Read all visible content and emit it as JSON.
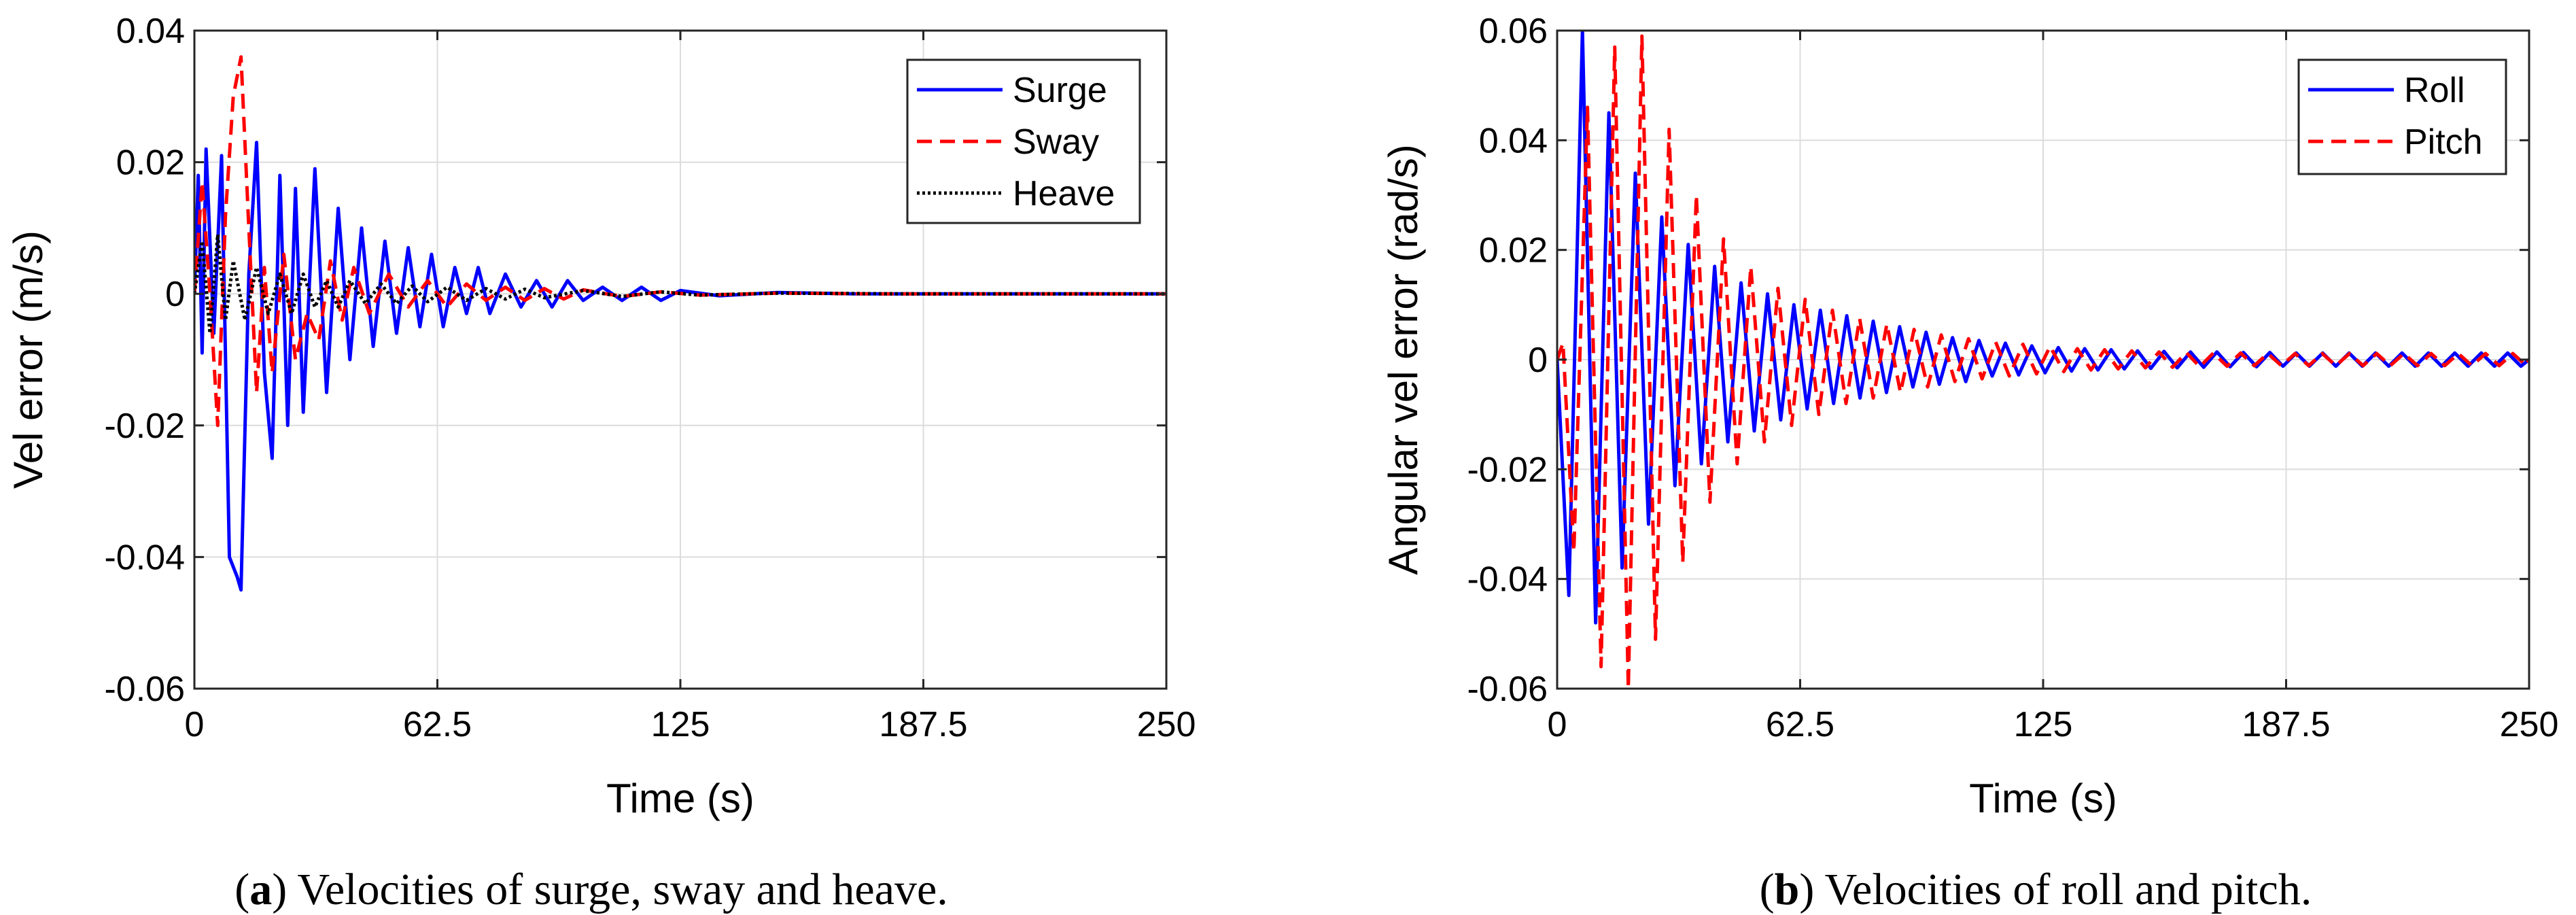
{
  "chart_data": [
    {
      "type": "line",
      "panel": "a",
      "caption_letter": "a",
      "caption_text": ") Velocities of surge, sway and heave.",
      "xlabel": "Time (s)",
      "ylabel": "Vel error (m/s)",
      "xlim": [
        0,
        250
      ],
      "ylim": [
        -0.06,
        0.04
      ],
      "xticks": [
        0,
        62.5,
        125,
        187.5,
        250
      ],
      "xtick_labels": [
        "0",
        "62.5",
        "125",
        "187.5",
        "250"
      ],
      "yticks": [
        -0.06,
        -0.04,
        -0.02,
        0,
        0.02,
        0.04
      ],
      "ytick_labels": [
        "-0.06",
        "-0.04",
        "-0.02",
        "0",
        "0.02",
        "0.04"
      ],
      "grid": true,
      "legend_position": "top-right",
      "series": [
        {
          "name": "Surge",
          "color": "#0000ff",
          "style": "solid",
          "x": [
            0,
            1,
            2,
            3,
            5,
            7,
            9,
            11,
            12,
            14,
            16,
            18,
            20,
            22,
            24,
            26,
            28,
            31,
            34,
            37,
            40,
            43,
            46,
            49,
            52,
            55,
            58,
            61,
            64,
            67,
            70,
            73,
            76,
            80,
            84,
            88,
            92,
            96,
            100,
            105,
            110,
            115,
            120,
            125,
            135,
            150,
            170,
            200,
            250
          ],
          "values": [
            0,
            0.018,
            -0.009,
            0.022,
            -0.006,
            0.021,
            -0.04,
            -0.043,
            -0.045,
            0.003,
            0.023,
            -0.012,
            -0.025,
            0.018,
            -0.02,
            0.016,
            -0.018,
            0.019,
            -0.015,
            0.013,
            -0.01,
            0.01,
            -0.008,
            0.008,
            -0.006,
            0.007,
            -0.005,
            0.006,
            -0.005,
            0.004,
            -0.003,
            0.004,
            -0.003,
            0.003,
            -0.002,
            0.002,
            -0.002,
            0.002,
            -0.001,
            0.001,
            -0.001,
            0.001,
            -0.001,
            0.0005,
            -0.0003,
            0.0002,
            0.0,
            0.0,
            0.0
          ]
        },
        {
          "name": "Sway",
          "color": "#ff0000",
          "style": "dashed",
          "x": [
            0,
            2,
            4,
            6,
            8,
            10,
            12,
            14,
            16,
            18,
            20,
            23,
            26,
            29,
            32,
            35,
            38,
            41,
            45,
            50,
            55,
            60,
            65,
            70,
            75,
            80,
            85,
            90,
            95,
            100,
            110,
            120,
            130,
            150,
            175,
            200,
            250
          ],
          "values": [
            0.0,
            0.017,
            0.0,
            -0.02,
            0.012,
            0.03,
            0.036,
            0.01,
            -0.015,
            0.004,
            -0.012,
            0.006,
            -0.01,
            -0.003,
            -0.007,
            0.005,
            -0.004,
            0.004,
            -0.003,
            0.003,
            -0.002,
            0.002,
            -0.002,
            0.0015,
            -0.001,
            0.001,
            -0.001,
            0.0008,
            -0.0008,
            0.0006,
            -0.0004,
            0.0003,
            -0.0002,
            0.0001,
            0.0,
            0.0,
            0.0
          ]
        },
        {
          "name": "Heave",
          "color": "#000000",
          "style": "dotted",
          "x": [
            0,
            2,
            4,
            6,
            8,
            10,
            13,
            16,
            19,
            22,
            25,
            28,
            31,
            34,
            37,
            40,
            44,
            48,
            52,
            56,
            60,
            65,
            70,
            75,
            80,
            85,
            90,
            100,
            110,
            120,
            130,
            150,
            180,
            250
          ],
          "values": [
            0.0,
            0.008,
            -0.006,
            0.009,
            -0.004,
            0.005,
            -0.004,
            0.004,
            -0.003,
            0.003,
            -0.003,
            0.003,
            -0.002,
            0.002,
            -0.002,
            0.002,
            -0.0015,
            0.0015,
            -0.0015,
            0.0012,
            -0.0012,
            0.001,
            -0.001,
            0.0008,
            -0.0008,
            0.0007,
            -0.0006,
            0.0005,
            -0.0004,
            0.0003,
            -0.0002,
            0.0001,
            0.0,
            0.0
          ]
        }
      ]
    },
    {
      "type": "line",
      "panel": "b",
      "caption_letter": "b",
      "caption_text": ") Velocities of roll and pitch.",
      "xlabel": "Time (s)",
      "ylabel": "Angular vel error (rad/s)",
      "xlim": [
        0,
        250
      ],
      "ylim": [
        -0.06,
        0.06
      ],
      "xticks": [
        0,
        62.5,
        125,
        187.5,
        250
      ],
      "xtick_labels": [
        "0",
        "62.5",
        "125",
        "187.5",
        "250"
      ],
      "yticks": [
        -0.06,
        -0.04,
        -0.02,
        0,
        0.02,
        0.04,
        0.06
      ],
      "ytick_labels": [
        "-0.06",
        "-0.04",
        "-0.02",
        "0",
        "0.02",
        "0.04",
        "0.06"
      ],
      "grid": true,
      "legend_position": "top-right",
      "series": [
        {
          "name": "Roll",
          "color": "#0000ff",
          "style": "solid",
          "x": [
            0,
            3.0,
            6.5,
            9.9,
            13.3,
            16.7,
            20.1,
            23.5,
            26.9,
            30.3,
            33.7,
            37.1,
            40.5,
            43.9,
            47.3,
            50.7,
            54.1,
            57.5,
            60.9,
            64.3,
            67.7,
            71.1,
            74.5,
            77.9,
            81.3,
            84.7,
            88.1,
            91.5,
            94.9,
            98.3,
            101.7,
            105.1,
            108.5,
            111.9,
            115.3,
            118.7,
            122.1,
            125.5,
            128.9,
            132.3,
            135.7,
            139.1,
            142.5,
            145.9,
            149.3,
            152.7,
            156.1,
            159.5,
            162.9,
            166.3,
            169.7,
            173.1,
            176.5,
            179.9,
            183.3,
            186.7,
            190.1,
            193.5,
            196.9,
            200.3,
            203.7,
            207.1,
            210.5,
            213.9,
            217.3,
            220.7,
            224.1,
            227.5,
            230.9,
            234.3,
            237.7,
            241.1,
            244.5,
            247.9,
            250
          ],
          "values": [
            0.0,
            -0.043,
            0.06,
            -0.048,
            0.045,
            -0.038,
            0.034,
            -0.03,
            0.026,
            -0.023,
            0.021,
            -0.019,
            0.017,
            -0.015,
            0.014,
            -0.013,
            0.012,
            -0.011,
            0.01,
            -0.009,
            0.009,
            -0.008,
            0.008,
            -0.007,
            0.007,
            -0.006,
            0.006,
            -0.005,
            0.005,
            -0.0045,
            0.004,
            -0.004,
            0.0035,
            -0.003,
            0.003,
            -0.0028,
            0.0025,
            -0.0024,
            0.0022,
            -0.0021,
            0.002,
            -0.0019,
            0.0018,
            -0.0017,
            0.0016,
            -0.0016,
            0.0015,
            -0.0015,
            0.0014,
            -0.0014,
            0.0014,
            -0.0013,
            0.0013,
            -0.0013,
            0.0013,
            -0.0012,
            0.0012,
            -0.0012,
            0.0012,
            -0.0012,
            0.0012,
            -0.0012,
            0.0012,
            -0.0012,
            0.0012,
            -0.0012,
            0.0012,
            -0.0012,
            0.0012,
            -0.0012,
            0.0012,
            -0.0012,
            0.0012,
            -0.0012,
            0.0
          ]
        },
        {
          "name": "Pitch",
          "color": "#ff0000",
          "style": "dashed",
          "x": [
            0,
            1.5,
            4.3,
            7.8,
            11.3,
            14.8,
            18.3,
            21.8,
            25.3,
            28.8,
            32.3,
            35.8,
            39.3,
            42.8,
            46.3,
            49.8,
            53.3,
            56.8,
            60.3,
            63.8,
            67.3,
            70.8,
            74.3,
            77.8,
            81.3,
            84.8,
            88.3,
            91.8,
            95.3,
            98.8,
            102.3,
            105.8,
            109.3,
            112.8,
            116.3,
            119.8,
            123.3,
            126.8,
            130.3,
            133.8,
            137.3,
            140.8,
            144.3,
            147.8,
            151.3,
            154.8,
            158.3,
            161.8,
            165.3,
            168.8,
            172.3,
            175.8,
            179.3,
            182.8,
            186.3,
            189.8,
            193.3,
            196.8,
            200.3,
            203.8,
            207.3,
            210.8,
            214.3,
            217.8,
            221.3,
            224.8,
            228.3,
            231.8,
            235.3,
            238.8,
            242.3,
            245.8,
            249.3,
            250
          ],
          "values": [
            0.0,
            0.003,
            -0.035,
            0.046,
            -0.056,
            0.057,
            -0.06,
            0.059,
            -0.051,
            0.042,
            -0.037,
            0.03,
            -0.026,
            0.022,
            -0.019,
            0.017,
            -0.015,
            0.013,
            -0.012,
            0.011,
            -0.01,
            0.009,
            -0.008,
            0.0075,
            -0.007,
            0.0065,
            -0.006,
            0.0055,
            -0.005,
            0.0045,
            -0.004,
            0.0038,
            -0.0035,
            0.0032,
            -0.003,
            0.0028,
            -0.0026,
            0.0024,
            -0.0022,
            0.002,
            -0.0019,
            0.0018,
            -0.0017,
            0.0016,
            -0.0015,
            0.0014,
            -0.0014,
            0.0013,
            -0.0013,
            0.0012,
            -0.0012,
            0.0012,
            -0.0011,
            0.0011,
            -0.0011,
            0.0011,
            -0.0011,
            0.0011,
            -0.0011,
            0.0011,
            -0.0011,
            0.0011,
            -0.0011,
            0.0011,
            -0.0011,
            0.0011,
            -0.0011,
            0.0011,
            -0.0011,
            0.0011,
            -0.0011,
            0.0011,
            -0.0011,
            0.0
          ]
        }
      ]
    }
  ],
  "colors": {
    "axis": "#262626",
    "grid": "#dcdcdc",
    "legend_border": "#262626"
  }
}
